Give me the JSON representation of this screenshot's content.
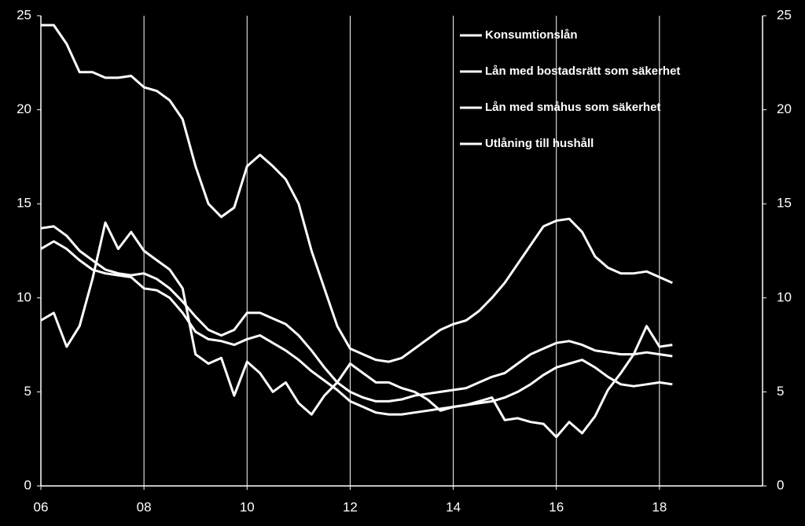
{
  "chart_data": {
    "type": "line",
    "x": [
      2006,
      2006.25,
      2006.5,
      2006.75,
      2007,
      2007.25,
      2007.5,
      2007.75,
      2008,
      2008.25,
      2008.5,
      2008.75,
      2009,
      2009.25,
      2009.5,
      2009.75,
      2010,
      2010.25,
      2010.5,
      2010.75,
      2011,
      2011.25,
      2011.5,
      2011.75,
      2012,
      2012.25,
      2012.5,
      2012.75,
      2013,
      2013.25,
      2013.5,
      2013.75,
      2014,
      2014.25,
      2014.5,
      2014.75,
      2015,
      2015.25,
      2015.5,
      2015.75,
      2016,
      2016.25,
      2016.5,
      2016.75,
      2017,
      2017.25,
      2017.5,
      2017.75,
      2018,
      2018.25
    ],
    "series": [
      {
        "name": "Konsumtionslån",
        "color": "#ffffff",
        "values": [
          8.8,
          9.2,
          7.4,
          8.5,
          11,
          14,
          12.6,
          13.5,
          12.5,
          12,
          11.5,
          10.5,
          7,
          6.5,
          6.8,
          4.8,
          6.6,
          6,
          5,
          5.5,
          4.4,
          3.8,
          4.8,
          5.5,
          6.5,
          6,
          5.5,
          5.5,
          5.2,
          5,
          4.6,
          4,
          4.2,
          4.3,
          4.5,
          4.7,
          3.5,
          3.6,
          3.4,
          3.3,
          2.6,
          3.4,
          2.8,
          3.7,
          5.1,
          6,
          7,
          8.5,
          7.4,
          7.5
        ]
      },
      {
        "name": "Lån med bostadsrätt som säkerhet",
        "color": "#ffffff",
        "values": [
          24.5,
          24.5,
          23.5,
          22,
          22,
          21.7,
          21.7,
          21.8,
          21.2,
          21,
          20.5,
          19.5,
          17,
          15,
          14.3,
          14.8,
          17,
          17.6,
          17,
          16.3,
          15,
          12.5,
          10.5,
          8.5,
          7.3,
          7,
          6.7,
          6.6,
          6.8,
          7.3,
          7.8,
          8.3,
          8.6,
          8.8,
          9.3,
          10,
          10.8,
          11.8,
          12.8,
          13.8,
          14.1,
          14.2,
          13.5,
          12.2,
          11.6,
          11.3,
          11.3,
          11.4,
          11.1,
          10.8
        ]
      },
      {
        "name": "Lån med småhus som säkerhet",
        "color": "#ffffff",
        "values": [
          13.7,
          13.8,
          13.3,
          12.5,
          12,
          11.5,
          11.3,
          11.2,
          11.3,
          11,
          10.5,
          9.8,
          9,
          8.3,
          8,
          8.3,
          9.2,
          9.2,
          8.9,
          8.6,
          8,
          7.2,
          6.3,
          5.5,
          5,
          4.7,
          4.5,
          4.5,
          4.6,
          4.8,
          4.9,
          5,
          5.1,
          5.2,
          5.5,
          5.8,
          6,
          6.5,
          7,
          7.3,
          7.6,
          7.7,
          7.5,
          7.2,
          7.1,
          7,
          7,
          7.1,
          7,
          6.9
        ]
      },
      {
        "name": "Utlåning till hushåll",
        "color": "#ffffff",
        "values": [
          12.6,
          13,
          12.6,
          12,
          11.5,
          11.3,
          11.2,
          11.1,
          10.5,
          10.4,
          10,
          9.2,
          8.2,
          7.8,
          7.7,
          7.5,
          7.8,
          8,
          7.6,
          7.2,
          6.7,
          6.1,
          5.6,
          5.1,
          4.5,
          4.2,
          3.9,
          3.8,
          3.8,
          3.9,
          4,
          4.1,
          4.2,
          4.3,
          4.4,
          4.5,
          4.7,
          5,
          5.4,
          5.9,
          6.3,
          6.5,
          6.7,
          6.3,
          5.8,
          5.4,
          5.3,
          5.4,
          5.5,
          5.4
        ]
      }
    ],
    "xlim": [
      2006,
      2020
    ],
    "xticks": [
      {
        "value": 2006,
        "label": "06"
      },
      {
        "value": 2008,
        "label": "08"
      },
      {
        "value": 2010,
        "label": "10"
      },
      {
        "value": 2012,
        "label": "12"
      },
      {
        "value": 2014,
        "label": "14"
      },
      {
        "value": 2016,
        "label": "16"
      },
      {
        "value": 2018,
        "label": "18"
      }
    ],
    "ylim": [
      0,
      25
    ],
    "yticks": [
      0,
      5,
      10,
      15,
      20,
      25
    ],
    "y2lim": [
      0,
      25
    ],
    "y2ticks": [
      0,
      5,
      10,
      15,
      20,
      25
    ],
    "grid": "x",
    "legend": "top-right"
  }
}
